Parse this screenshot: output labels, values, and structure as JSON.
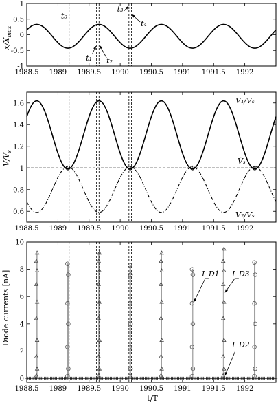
{
  "chart_data": [
    {
      "type": "line",
      "panel": "position",
      "ylabel": "x/X_max",
      "xlim": [
        1988.5,
        1992.5
      ],
      "ylim": [
        -1,
        1
      ],
      "xticks": [
        1988.5,
        1989,
        1989.5,
        1990,
        1990.5,
        1991,
        1991.5,
        1992
      ],
      "yticks": [
        -1,
        -0.5,
        0,
        0.5,
        1
      ],
      "series": [
        {
          "period": 1.0,
          "amplitude": 0.38,
          "offset": -0.05,
          "peak_at": 1988.66,
          "style": "solid"
        }
      ],
      "markers": [
        {
          "label": "t₀",
          "x": 1989.18
        },
        {
          "label": "t₁",
          "x": 1989.62
        },
        {
          "label": "t₂",
          "x": 1989.66
        },
        {
          "label": "t₃",
          "x": 1990.14
        },
        {
          "label": "t₄",
          "x": 1990.18
        }
      ],
      "grid": false
    },
    {
      "type": "line",
      "panel": "voltages",
      "ylabel": "V/V_s",
      "xlim": [
        1988.5,
        1992.5
      ],
      "ylim": [
        0.5,
        1.7
      ],
      "xticks": [
        1988.5,
        1989,
        1989.5,
        1990,
        1990.5,
        1991,
        1991.5,
        1992
      ],
      "yticks": [
        0.6,
        0.8,
        1,
        1.2,
        1.4,
        1.6
      ],
      "series": [
        {
          "name": "V₁/Vₛ",
          "period": 1.0,
          "min": 0.99,
          "max": 1.62,
          "peak_at": 1988.66,
          "style": "solid"
        },
        {
          "name": "V̂ₛ",
          "constant": 1.0,
          "style": "dashed"
        },
        {
          "name": "V₂/Vₛ",
          "period": 1.0,
          "min": 0.59,
          "max": 1.01,
          "peak_at": 1989.16,
          "style": "dashdot"
        }
      ],
      "grid": false
    },
    {
      "type": "scatter",
      "panel": "diode-currents",
      "xlabel": "t/T",
      "ylabel": "Diode currents [nA]",
      "xlim": [
        1988.5,
        1992.5
      ],
      "ylim": [
        -0.3,
        10
      ],
      "xticks": [
        1988.5,
        1989,
        1989.5,
        1990,
        1990.5,
        1991,
        1991.5,
        1992
      ],
      "yticks": [
        0,
        2,
        4,
        6,
        8,
        10
      ],
      "series": [
        {
          "name": "I_D1",
          "marker": "circle",
          "spikes": [
            [
              1989.16,
              8.4
            ],
            [
              1990.16,
              8.3
            ],
            [
              1991.16,
              8.0
            ],
            [
              1992.16,
              8.5
            ]
          ]
        },
        {
          "name": "I_D2",
          "marker": "plus",
          "baseline": 0.0
        },
        {
          "name": "I_D3",
          "marker": "triangle",
          "spikes": [
            [
              1988.66,
              9.2
            ],
            [
              1989.66,
              9.2
            ],
            [
              1990.66,
              9.2
            ],
            [
              1991.66,
              9.5
            ]
          ]
        }
      ],
      "grid": false
    }
  ],
  "annotations": {
    "position_labels": [
      "t₀",
      "t₁",
      "t₂",
      "t₃",
      "t₄"
    ],
    "voltage_labels": [
      "V₁/Vₛ",
      "V̂ₛ",
      "V₂/Vₛ"
    ],
    "current_labels": [
      "I_D1",
      "I_D3",
      "I_D2"
    ]
  }
}
